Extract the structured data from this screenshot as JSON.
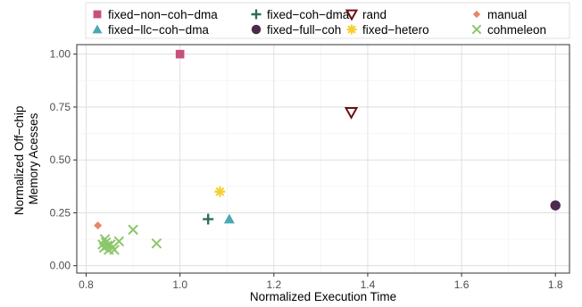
{
  "chart_data": {
    "type": "scatter",
    "xlabel": "Normalized Execution Time",
    "ylabel": [
      "Normalized Off−chip",
      "Memory Acesses"
    ],
    "xlim": [
      0.78,
      1.83
    ],
    "ylim": [
      -0.035,
      1.045
    ],
    "xticks": [
      0.8,
      1.0,
      1.2,
      1.4,
      1.6,
      1.8
    ],
    "xtick_labels": [
      "0.8",
      "1.0",
      "1.2",
      "1.4",
      "1.6",
      "1.8"
    ],
    "yticks": [
      0.0,
      0.25,
      0.5,
      0.75,
      1.0
    ],
    "ytick_labels": [
      "0.00",
      "0.25",
      "0.50",
      "0.75",
      "1.00"
    ],
    "grid": true,
    "legend_position": "top",
    "series": [
      {
        "name": "fixed−non−coh−dma",
        "marker": "square",
        "color": "#c7517c",
        "points": [
          [
            1.0,
            1.0
          ]
        ]
      },
      {
        "name": "fixed−llc−coh−dma",
        "marker": "triangle",
        "color": "#4aa8b4",
        "points": [
          [
            1.105,
            0.22
          ]
        ]
      },
      {
        "name": "fixed−coh−dma",
        "marker": "plus",
        "color": "#2e6e5a",
        "points": [
          [
            1.06,
            0.22
          ]
        ]
      },
      {
        "name": "fixed−full−coh",
        "marker": "circle",
        "color": "#4e2a4f",
        "points": [
          [
            1.8,
            0.285
          ]
        ]
      },
      {
        "name": "rand",
        "marker": "triangle-down",
        "color": "#6b0f16",
        "points": [
          [
            1.365,
            0.725
          ]
        ]
      },
      {
        "name": "fixed−hetero",
        "marker": "asterisk",
        "color": "#f4d033",
        "points": [
          [
            1.085,
            0.35
          ]
        ]
      },
      {
        "name": "manual",
        "marker": "diamond",
        "color": "#e8856a",
        "points": [
          [
            0.825,
            0.19
          ]
        ]
      },
      {
        "name": "cohmeleon",
        "marker": "x",
        "color": "#8cc66b",
        "points": [
          [
            0.95,
            0.105
          ],
          [
            0.9,
            0.17
          ],
          [
            0.87,
            0.115
          ],
          [
            0.84,
            0.125
          ],
          [
            0.835,
            0.1
          ],
          [
            0.838,
            0.085
          ],
          [
            0.845,
            0.095
          ],
          [
            0.848,
            0.075
          ],
          [
            0.852,
            0.1
          ],
          [
            0.856,
            0.085
          ],
          [
            0.86,
            0.075
          ],
          [
            0.842,
            0.11
          ]
        ]
      }
    ]
  }
}
